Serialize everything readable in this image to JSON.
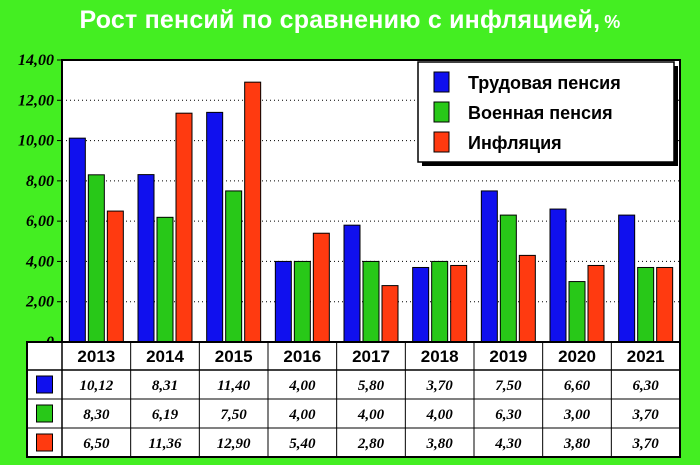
{
  "title": "Рост пенсий по сравнению с инфляцией,",
  "title_unit": "%",
  "colors": {
    "background": "#44ee22",
    "plot_bg": "#ffffff",
    "series": [
      "#1010ee",
      "#28c818",
      "#ff3a10"
    ]
  },
  "chart_data": {
    "type": "bar",
    "title": "Рост пенсий по сравнению с инфляцией, %",
    "categories": [
      "2013",
      "2014",
      "2015",
      "2016",
      "2017",
      "2018",
      "2019",
      "2020",
      "2021"
    ],
    "series": [
      {
        "name": "Трудовая пенсия",
        "values": [
          10.12,
          8.31,
          11.4,
          4.0,
          5.8,
          3.7,
          7.5,
          6.6,
          6.3
        ],
        "labels": [
          "10,12",
          "8,31",
          "11,40",
          "4,00",
          "5,80",
          "3,70",
          "7,50",
          "6,60",
          "6,30"
        ]
      },
      {
        "name": "Военная пенсия",
        "values": [
          8.3,
          6.19,
          7.5,
          4.0,
          4.0,
          4.0,
          6.3,
          3.0,
          3.7
        ],
        "labels": [
          "8,30",
          "6,19",
          "7,50",
          "4,00",
          "4,00",
          "4,00",
          "6,30",
          "3,00",
          "3,70"
        ]
      },
      {
        "name": "Инфляция",
        "values": [
          6.5,
          11.36,
          12.9,
          5.4,
          2.8,
          3.8,
          4.3,
          3.8,
          3.7
        ],
        "labels": [
          "6,50",
          "11,36",
          "12,90",
          "5,40",
          "2,80",
          "3,80",
          "4,30",
          "3,80",
          "3,70"
        ]
      }
    ],
    "ylim": [
      0,
      14
    ],
    "yticks": [
      0,
      2,
      4,
      6,
      8,
      10,
      12,
      14
    ],
    "ytick_labels": [
      "0",
      "2,00",
      "4,00",
      "6,00",
      "8,00",
      "10,00",
      "12,00",
      "14,00"
    ],
    "grid": true,
    "legend": "top-right",
    "data_table": true
  }
}
